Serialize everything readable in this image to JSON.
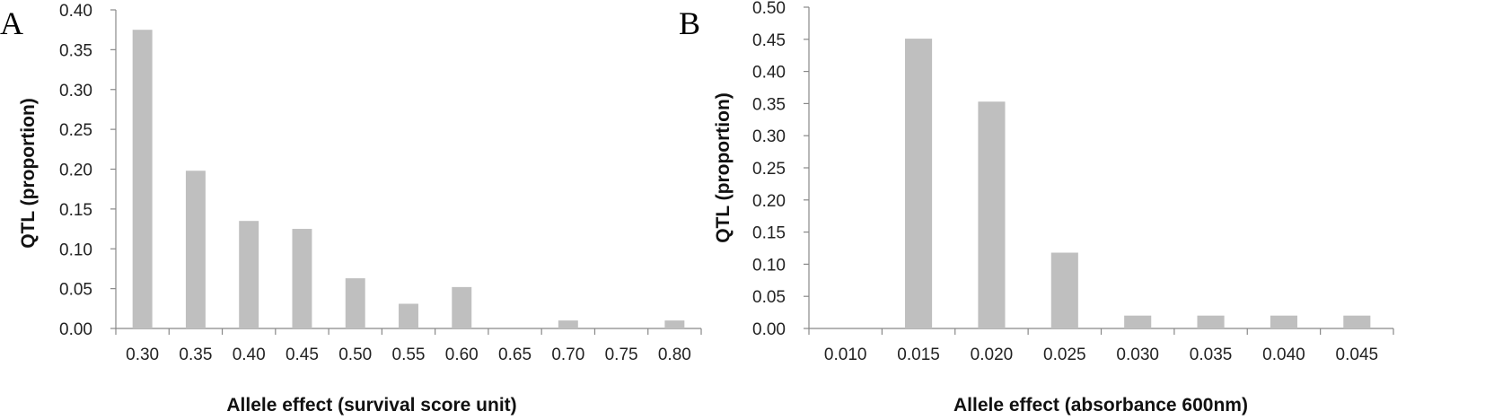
{
  "chart_data": [
    {
      "panel": "A",
      "type": "bar",
      "categories": [
        "0.30",
        "0.35",
        "0.40",
        "0.45",
        "0.50",
        "0.55",
        "0.60",
        "0.65",
        "0.70",
        "0.75",
        "0.80"
      ],
      "values": [
        0.375,
        0.198,
        0.135,
        0.125,
        0.063,
        0.031,
        0.052,
        0.0,
        0.01,
        0.0,
        0.01
      ],
      "xlabel": "Allele effect (survival score unit)",
      "ylabel": "QTL (proportion)",
      "ylim": [
        0,
        0.4
      ],
      "yticks": [
        "0.00",
        "0.05",
        "0.10",
        "0.15",
        "0.20",
        "0.25",
        "0.30",
        "0.35",
        "0.40"
      ],
      "color": "#bfbfbf",
      "grid": false
    },
    {
      "panel": "B",
      "type": "bar",
      "categories": [
        "0.010",
        "0.015",
        "0.020",
        "0.025",
        "0.030",
        "0.035",
        "0.040",
        "0.045"
      ],
      "values": [
        0.0,
        0.451,
        0.353,
        0.118,
        0.02,
        0.02,
        0.02,
        0.02
      ],
      "xlabel": "Allele effect (absorbance 600nm)",
      "ylabel": "QTL (proportion)",
      "ylim": [
        0,
        0.5
      ],
      "yticks": [
        "0.00",
        "0.05",
        "0.10",
        "0.15",
        "0.20",
        "0.25",
        "0.30",
        "0.35",
        "0.40",
        "0.45",
        "0.50"
      ],
      "color": "#bfbfbf",
      "grid": false
    }
  ]
}
